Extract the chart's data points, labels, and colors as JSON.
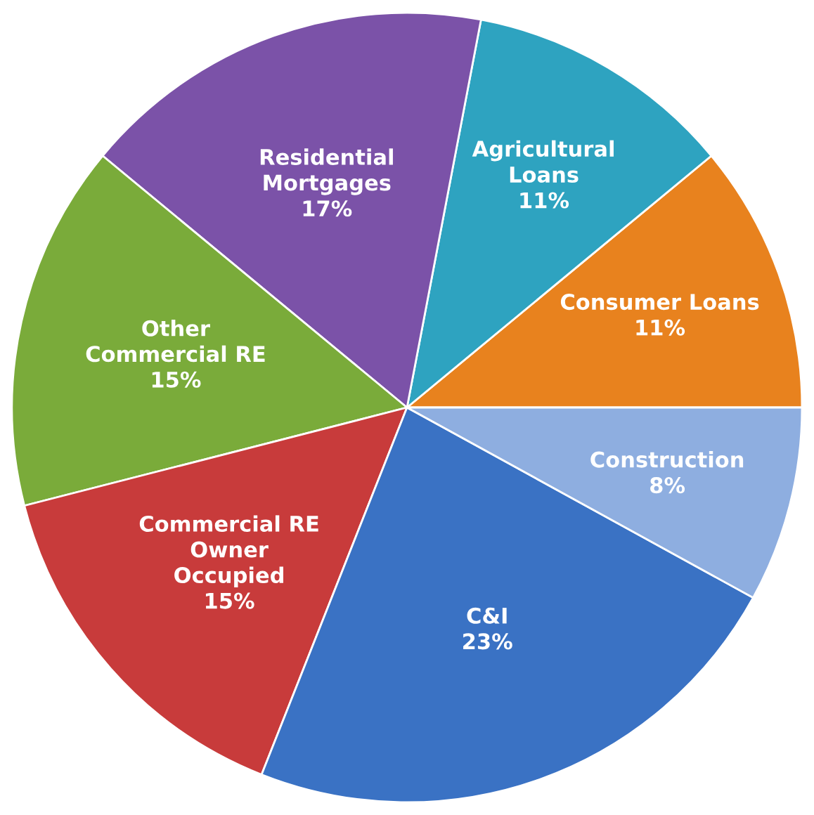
{
  "chart_data": {
    "type": "pie",
    "categories": [
      "Consumer Loans",
      "Agricultural\nLoans",
      "Residential\nMortgages",
      "Other\nCommercial RE",
      "Commercial RE\nOwner\nOccupied",
      "C&I",
      "Construction"
    ],
    "values": [
      11,
      11,
      17,
      15,
      15,
      23,
      8
    ],
    "value_labels": [
      "11%",
      "11%",
      "17%",
      "15%",
      "15%",
      "23%",
      "8%"
    ],
    "colors": [
      "#e8821e",
      "#2ea3c0",
      "#7b52a8",
      "#7aab3a",
      "#c83b3b",
      "#3a72c4",
      "#8eaee0"
    ]
  }
}
